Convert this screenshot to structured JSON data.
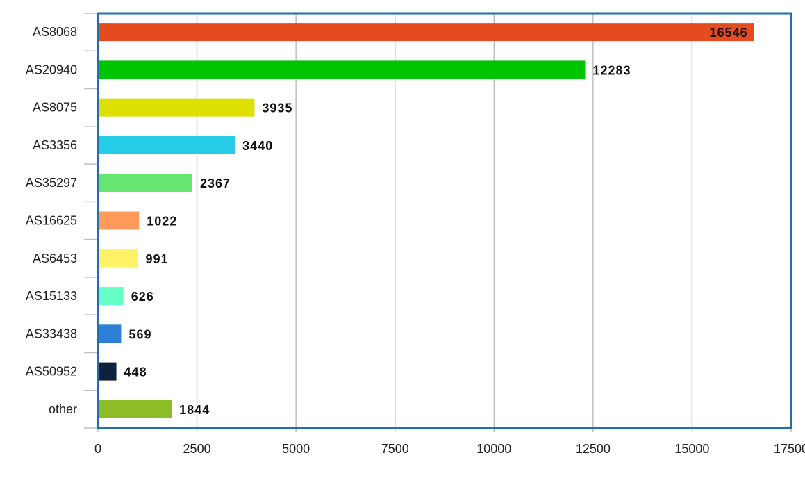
{
  "chart_data": {
    "type": "bar",
    "orientation": "horizontal",
    "categories": [
      "AS8068",
      "AS20940",
      "AS8075",
      "AS3356",
      "AS35297",
      "AS16625",
      "AS6453",
      "AS15133",
      "AS33438",
      "AS50952",
      "other"
    ],
    "values": [
      16546,
      12283,
      3935,
      3440,
      2367,
      1022,
      991,
      626,
      569,
      448,
      1844
    ],
    "colors": [
      "#e44b1e",
      "#00c400",
      "#dde000",
      "#26cce6",
      "#66e570",
      "#ff9a5a",
      "#fff266",
      "#66ffc6",
      "#2e7fd8",
      "#0e2240",
      "#8cbc26"
    ],
    "xlim": [
      0,
      17500
    ],
    "xticks": [
      0,
      2500,
      5000,
      7500,
      10000,
      12500,
      15000,
      17500
    ],
    "grid": "vertical",
    "data_labels": true,
    "title": "",
    "xlabel": "",
    "ylabel": "",
    "frame_color": "#1f6fb2"
  }
}
